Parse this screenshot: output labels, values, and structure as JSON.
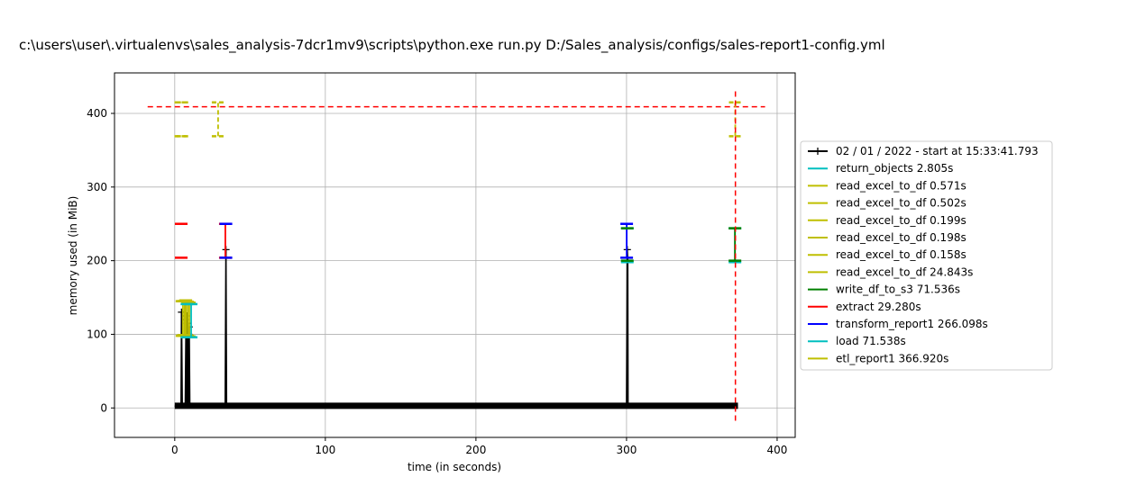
{
  "chart_data": {
    "type": "line",
    "title": "c:\\users\\user\\.virtualenvs\\sales_analysis-7dcr1mv9\\scripts\\python.exe run.py D:/Sales_analysis/configs/sales-report1-config.yml",
    "xlabel": "time (in seconds)",
    "ylabel": "memory used (in MiB)",
    "xlim": [
      -40,
      412
    ],
    "ylim": [
      -40,
      455
    ],
    "xticks": [
      0,
      100,
      200,
      300,
      400
    ],
    "yticks": [
      0,
      100,
      200,
      300,
      400
    ],
    "grid": true,
    "legend_position": "center-right, outside",
    "memory_series": {
      "name": "02 / 01 / 2022 - start at 15:33:41.793",
      "color": "#000000",
      "x": [
        0,
        1,
        2,
        3,
        4.2,
        4.5,
        5,
        6,
        7,
        7.5,
        7.8,
        8,
        8.4,
        9,
        9.3,
        9.6,
        10,
        11,
        13,
        20,
        30,
        33.5,
        34,
        34.4,
        35,
        37,
        50,
        100,
        150,
        200,
        250,
        290,
        300,
        300.5,
        300.8,
        301,
        302,
        320,
        350,
        370,
        371,
        372,
        372.4,
        373,
        374
      ],
      "y": [
        2,
        3,
        3,
        3,
        3,
        130,
        3,
        3,
        3,
        120,
        125,
        3,
        115,
        3,
        100,
        110,
        3,
        3,
        3,
        3,
        3,
        3,
        215,
        3,
        3,
        3,
        3,
        3,
        3,
        3,
        3,
        3,
        3,
        215,
        200,
        3,
        3,
        3,
        3,
        3,
        3,
        3,
        3,
        3,
        3
      ]
    },
    "peak_line": {
      "y": 409,
      "x_start": -18,
      "x_end": 392,
      "color": "#ff0000",
      "style": "dashed"
    },
    "end_line": {
      "x": 372.3,
      "color": "#ff0000",
      "style": "dashed"
    },
    "function_brackets": [
      {
        "label": "read_excel_to_df 0.571s",
        "color": "#bfbf00",
        "x_start": 4.8,
        "x_end": 5.4,
        "y_min": 98,
        "y_max": 145,
        "style": "solid"
      },
      {
        "label": "read_excel_to_df 0.502s",
        "color": "#bfbf00",
        "x_start": 6.0,
        "x_end": 6.5,
        "y_min": 99,
        "y_max": 145,
        "style": "solid"
      },
      {
        "label": "read_excel_to_df 0.199s",
        "color": "#bfbf00",
        "x_start": 7.2,
        "x_end": 7.4,
        "y_min": 99,
        "y_max": 146,
        "style": "solid"
      },
      {
        "label": "read_excel_to_df 0.198s",
        "color": "#bfbf00",
        "x_start": 8.4,
        "x_end": 8.6,
        "y_min": 98,
        "y_max": 144,
        "style": "solid"
      },
      {
        "label": "read_excel_to_df 0.158s",
        "color": "#bfbf00",
        "x_start": 9.5,
        "x_end": 9.7,
        "y_min": 97,
        "y_max": 143,
        "style": "solid"
      },
      {
        "label": "return_objects 2.805s",
        "color": "#00bfbf",
        "x_start": 8.1,
        "x_end": 10.9,
        "y_min": 96,
        "y_max": 141,
        "style": "solid"
      },
      {
        "label": "extract 29.280s",
        "color": "#ff0000",
        "x_start": 4.3,
        "x_end": 33.6,
        "y_min": 204,
        "y_max": 250,
        "style": "solid"
      },
      {
        "label": "transform_report1 266.098s",
        "color": "#0000ff",
        "x_start": 34.0,
        "x_end": 300.1,
        "y_min": 204,
        "y_max": 250,
        "style": "solid"
      },
      {
        "label": "load 71.538s",
        "color": "#00bfbf",
        "x_start": 300.5,
        "x_end": 372.0,
        "y_min": 198,
        "y_max": 244,
        "style": "solid"
      },
      {
        "label": "write_df_to_s3 71.536s",
        "color": "#008000",
        "x_start": 300.5,
        "x_end": 372.0,
        "y_min": 200,
        "y_max": 244,
        "style": "solid"
      },
      {
        "label": "etl_report1 366.920s",
        "color": "#bfbf00",
        "x_start": 5.3,
        "x_end": 372.2,
        "y_min": 369,
        "y_max": 415,
        "style": "dashed"
      },
      {
        "label": "read_excel_to_df 24.843s",
        "color": "#bfbf00",
        "x_start": 4.0,
        "x_end": 28.8,
        "y_min": 369,
        "y_max": 415,
        "style": "dashed"
      }
    ],
    "legend": [
      {
        "label": "02 / 01 / 2022 - start at 15:33:41.793",
        "color": "#000000",
        "marker": "+"
      },
      {
        "label": "return_objects 2.805s",
        "color": "#00bfbf"
      },
      {
        "label": "read_excel_to_df 0.571s",
        "color": "#bfbf00"
      },
      {
        "label": "read_excel_to_df 0.502s",
        "color": "#bfbf00"
      },
      {
        "label": "read_excel_to_df 0.199s",
        "color": "#bfbf00"
      },
      {
        "label": "read_excel_to_df 0.198s",
        "color": "#bfbf00"
      },
      {
        "label": "read_excel_to_df 0.158s",
        "color": "#bfbf00"
      },
      {
        "label": "read_excel_to_df 24.843s",
        "color": "#bfbf00"
      },
      {
        "label": "write_df_to_s3 71.536s",
        "color": "#008000"
      },
      {
        "label": "extract 29.280s",
        "color": "#ff0000"
      },
      {
        "label": "transform_report1 266.098s",
        "color": "#0000ff"
      },
      {
        "label": "load 71.538s",
        "color": "#00bfbf"
      },
      {
        "label": "etl_report1 366.920s",
        "color": "#bfbf00"
      }
    ]
  }
}
